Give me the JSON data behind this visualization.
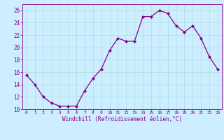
{
  "x": [
    0,
    1,
    2,
    3,
    4,
    5,
    6,
    7,
    8,
    9,
    10,
    11,
    12,
    13,
    14,
    15,
    16,
    17,
    18,
    19,
    20,
    21,
    22,
    23
  ],
  "y": [
    15.5,
    14.0,
    12.0,
    11.0,
    10.5,
    10.5,
    10.5,
    13.0,
    15.0,
    16.5,
    19.5,
    21.5,
    21.0,
    21.0,
    25.0,
    25.0,
    26.0,
    25.5,
    23.5,
    22.5,
    23.5,
    21.5,
    18.5,
    16.5
  ],
  "ylim": [
    10,
    27
  ],
  "yticks": [
    10,
    12,
    14,
    16,
    18,
    20,
    22,
    24,
    26
  ],
  "xticks": [
    0,
    1,
    2,
    3,
    4,
    5,
    6,
    7,
    8,
    9,
    10,
    11,
    12,
    13,
    14,
    15,
    16,
    17,
    18,
    19,
    20,
    21,
    22,
    23
  ],
  "xlabel": "Windchill (Refroidissement éolien,°C)",
  "line_color": "#880088",
  "marker_color": "#880088",
  "bg_color": "#cceeff",
  "grid_color": "#aadddd",
  "axis_label_color": "#880088",
  "tick_color": "#880088",
  "spine_color": "#880088"
}
